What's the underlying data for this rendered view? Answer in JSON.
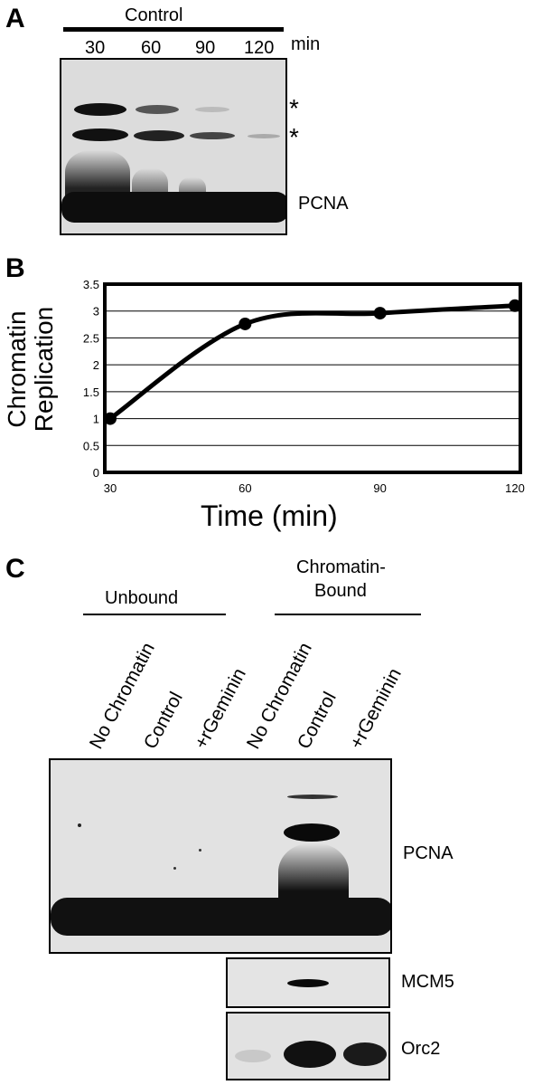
{
  "panel_a": {
    "letter": "A",
    "header": "Control",
    "lanes": [
      "30",
      "60",
      "90",
      "120"
    ],
    "unit": "min",
    "markers": [
      "*",
      "*"
    ],
    "band_label": "PCNA"
  },
  "panel_b": {
    "letter": "B",
    "chart_data": {
      "type": "line",
      "x": [
        30,
        60,
        90,
        120
      ],
      "y": [
        1.0,
        2.76,
        2.96,
        3.1
      ],
      "xticks": [
        "30",
        "60",
        "90",
        "120"
      ],
      "yticks": [
        "0",
        "0.5",
        "1",
        "1.5",
        "2",
        "2.5",
        "3",
        "3.5"
      ],
      "ylim": [
        0,
        3.5
      ],
      "xlim": [
        30,
        120
      ],
      "ylabel_line1": "Chromatin",
      "ylabel_line2": "Replication",
      "xlabel": "Time (min)",
      "grid": true
    }
  },
  "panel_c": {
    "letter": "C",
    "group_unbound": "Unbound",
    "group_bound_line1": "Chromatin-",
    "group_bound_line2": "Bound",
    "lanes": [
      "No Chromatin",
      "Control",
      "+rGeminin",
      "No Chromatin",
      "Control",
      "+rGeminin"
    ],
    "blot_labels": [
      "PCNA",
      "MCM5",
      "Orc2"
    ]
  }
}
